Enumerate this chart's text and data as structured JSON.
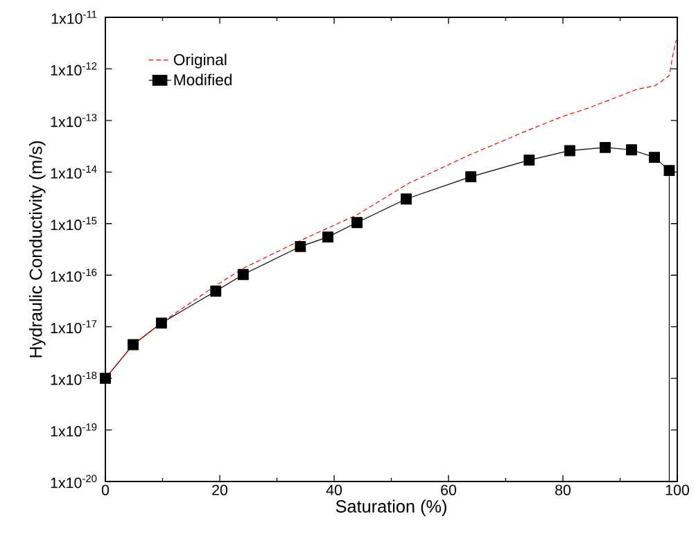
{
  "chart_data": {
    "type": "line",
    "xlabel": "Saturation (%)",
    "ylabel": "Hydraulic Conductivity (m/s)",
    "log": "y",
    "legend": "top left",
    "xlim": [
      0,
      100
    ],
    "xticks": [
      0,
      20,
      40,
      60,
      80,
      100
    ],
    "ylim": [
      1e-20,
      1e-11
    ],
    "yticks": [
      {
        "value": 1e-20,
        "label": "1x10$^{-20}$"
      },
      {
        "value": 1e-19,
        "label": "1x10$^{-19}$"
      },
      {
        "value": 1e-18,
        "label": "1x10$^{-18}$"
      },
      {
        "value": 1e-17,
        "label": "1x10$^{-17}$"
      },
      {
        "value": 1e-16,
        "label": "1x10$^{-16}$"
      },
      {
        "value": 1e-15,
        "label": "1x10$^{-15}$"
      },
      {
        "value": 1e-14,
        "label": "1x10$^{-14}$"
      },
      {
        "value": 1e-13,
        "label": "1x10$^{-13}$"
      },
      {
        "value": 1e-12,
        "label": "1x10$^{-12}$"
      },
      {
        "value": 1e-11,
        "label": "1x10$^{-11}$"
      }
    ],
    "series": [
      {
        "name": "Original",
        "color": "#ff0000",
        "line_style": "dashed",
        "marker": "none",
        "x": [
          0,
          4.85,
          9.8,
          19.3,
          24.1,
          34.1,
          44,
          53.1,
          63.9,
          74.1,
          80,
          84.6,
          93,
          96.1,
          98.6,
          99.1,
          99.8
        ],
        "values": [
          1e-18,
          4.5e-18,
          1.2e-17,
          6.3e-17,
          1.36e-16,
          4.7e-16,
          1.48e-15,
          6.1e-15,
          2.2e-14,
          6.6e-14,
          1.2e-13,
          1.76e-13,
          4.04e-13,
          4.7e-13,
          7.4e-13,
          1.55e-12,
          3.6e-12
        ]
      },
      {
        "name": "Modified",
        "color": "#000000",
        "line_style": "solid",
        "marker": "square",
        "x": [
          0,
          4.85,
          9.8,
          19.3,
          24.1,
          34.1,
          38.9,
          44,
          52.6,
          63.9,
          74.1,
          81.2,
          87.4,
          92,
          96,
          98.6
        ],
        "values": [
          1e-18,
          4.5e-18,
          1.18e-17,
          4.9e-17,
          1.03e-16,
          3.6e-16,
          5.5e-16,
          1.05e-15,
          3e-15,
          8.1e-15,
          1.7e-14,
          2.6e-14,
          3e-14,
          2.7e-14,
          1.93e-14,
          1.07e-14
        ]
      },
      {
        "color": "#000000",
        "line_style": "solid",
        "marker": "none",
        "x": [
          98.6,
          98.6
        ],
        "values": [
          1.07e-14,
          1e-20
        ]
      }
    ]
  }
}
